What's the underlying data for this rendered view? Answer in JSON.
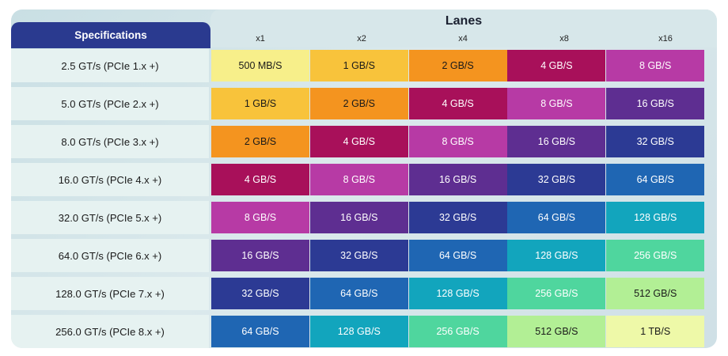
{
  "header": {
    "lanes_title": "Lanes",
    "spec_title": "Specifications",
    "lanes": [
      "x1",
      "x2",
      "x4",
      "x8",
      "x16"
    ]
  },
  "rows": [
    {
      "spec": "2.5 GT/s (PCIe 1.x +)",
      "values": [
        "500 MB/S",
        "1 GB/S",
        "2 GB/S",
        "4 GB/S",
        "8 GB/S"
      ]
    },
    {
      "spec": "5.0 GT/s (PCIe 2.x +)",
      "values": [
        "1 GB/S",
        "2 GB/S",
        "4 GB/S",
        "8 GB/S",
        "16 GB/S"
      ]
    },
    {
      "spec": "8.0 GT/s (PCIe 3.x +)",
      "values": [
        "2 GB/S",
        "4 GB/S",
        "8 GB/S",
        "16 GB/S",
        "32 GB/S"
      ]
    },
    {
      "spec": "16.0 GT/s (PCIe 4.x +)",
      "values": [
        "4 GB/S",
        "8 GB/S",
        "16 GB/S",
        "32 GB/S",
        "64 GB/S"
      ]
    },
    {
      "spec": "32.0 GT/s (PCIe 5.x +)",
      "values": [
        "8 GB/S",
        "16 GB/S",
        "32 GB/S",
        "64 GB/S",
        "128 GB/S"
      ]
    },
    {
      "spec": "64.0 GT/s (PCIe 6.x +)",
      "values": [
        "16 GB/S",
        "32 GB/S",
        "64 GB/S",
        "128 GB/S",
        "256 GB/S"
      ]
    },
    {
      "spec": "128.0 GT/s (PCIe 7.x +)",
      "values": [
        "32 GB/S",
        "64 GB/S",
        "128 GB/S",
        "256 GB/S",
        "512 GB/S"
      ]
    },
    {
      "spec": "256.0 GT/s (PCIe 8.x +)",
      "values": [
        "64 GB/S",
        "128 GB/S",
        "256 GB/S",
        "512 GB/S",
        "1 TB/S"
      ]
    }
  ],
  "colors": {
    "500 MB/S": "#f7ef8a",
    "1 GB/S": "#f8c33b",
    "2 GB/S": "#f4941f",
    "4 GB/S": "#a8105a",
    "8 GB/S": "#b73aa5",
    "16 GB/S": "#5e2e91",
    "32 GB/S": "#2c3a94",
    "64 GB/S": "#1f66b3",
    "128 GB/S": "#12a5bd",
    "256 GB/S": "#4fd69e",
    "512 GB/S": "#b2ef95",
    "1 TB/S": "#eef9a8",
    "header_bg": "#2a3a8f",
    "spec_bg": "#e6f2f1"
  },
  "light_text_values": [
    "500 MB/S",
    "1 GB/S",
    "2 GB/S",
    "512 GB/S",
    "1 TB/S"
  ]
}
